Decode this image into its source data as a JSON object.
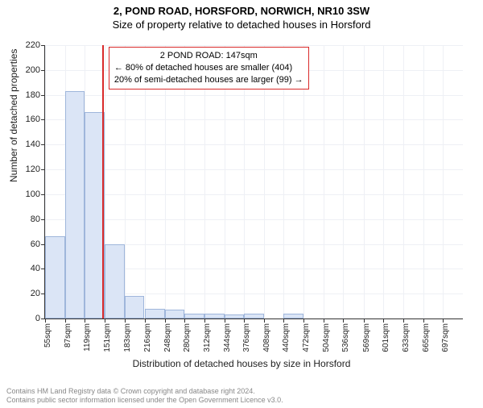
{
  "titles": {
    "line1": "2, POND ROAD, HORSFORD, NORWICH, NR10 3SW",
    "line2": "Size of property relative to detached houses in Horsford"
  },
  "chart": {
    "type": "histogram",
    "ylabel": "Number of detached properties",
    "xlabel": "Distribution of detached houses by size in Horsford",
    "ylim": [
      0,
      220
    ],
    "ytick_step": 20,
    "xticks": [
      "55sqm",
      "87sqm",
      "119sqm",
      "151sqm",
      "183sqm",
      "216sqm",
      "248sqm",
      "280sqm",
      "312sqm",
      "344sqm",
      "376sqm",
      "408sqm",
      "440sqm",
      "472sqm",
      "504sqm",
      "536sqm",
      "569sqm",
      "601sqm",
      "633sqm",
      "665sqm",
      "697sqm"
    ],
    "x_range": [
      55,
      697
    ],
    "bars": [
      {
        "x": 55,
        "count": 66
      },
      {
        "x": 87,
        "count": 183
      },
      {
        "x": 119,
        "count": 166
      },
      {
        "x": 151,
        "count": 60
      },
      {
        "x": 183,
        "count": 18
      },
      {
        "x": 216,
        "count": 8
      },
      {
        "x": 248,
        "count": 7
      },
      {
        "x": 280,
        "count": 4
      },
      {
        "x": 312,
        "count": 4
      },
      {
        "x": 344,
        "count": 3
      },
      {
        "x": 376,
        "count": 4
      },
      {
        "x": 408,
        "count": 0
      },
      {
        "x": 440,
        "count": 4
      },
      {
        "x": 472,
        "count": 0
      },
      {
        "x": 504,
        "count": 0
      },
      {
        "x": 536,
        "count": 0
      },
      {
        "x": 569,
        "count": 0
      },
      {
        "x": 601,
        "count": 0
      },
      {
        "x": 633,
        "count": 0
      },
      {
        "x": 665,
        "count": 0
      },
      {
        "x": 697,
        "count": 0
      }
    ],
    "bar_width_sqm": 32,
    "bar_fill": "#dbe5f6",
    "bar_stroke": "#9fb6db",
    "grid_color": "#eef0f5",
    "background_color": "#ffffff",
    "marker": {
      "x": 147,
      "color": "#d92a2a"
    },
    "axis_fontsize": 11,
    "label_fontsize": 12,
    "title_fontsize": 13
  },
  "annotation": {
    "lines": {
      "l1": "2 POND ROAD: 147sqm",
      "l2": "← 80% of detached houses are smaller (404)",
      "l3": "20% of semi-detached houses are larger (99) →"
    },
    "border_color": "#d92a2a",
    "background": "#ffffff",
    "fontsize": 11
  },
  "footer": {
    "line1": "Contains HM Land Registry data © Crown copyright and database right 2024.",
    "line2": "Contains public sector information licensed under the Open Government Licence v3.0."
  }
}
